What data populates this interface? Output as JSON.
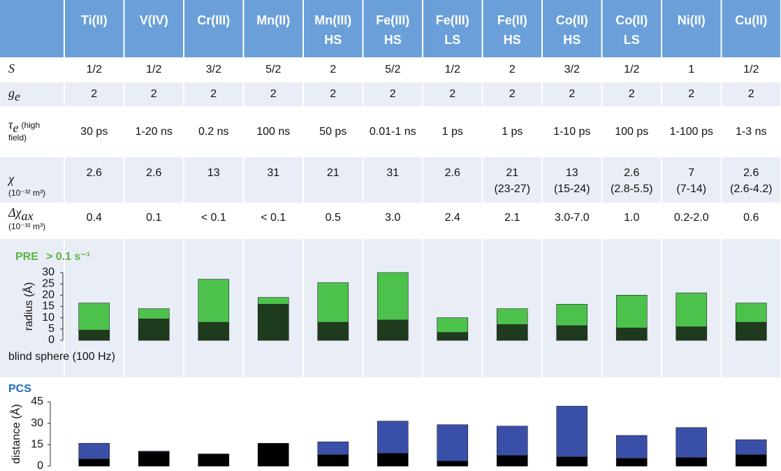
{
  "table": {
    "columns": [
      {
        "ion": "Ti(II)"
      },
      {
        "ion": "V(IV)"
      },
      {
        "ion": "Cr(III)"
      },
      {
        "ion": "Mn(II)"
      },
      {
        "ion": "Mn(III)",
        "state": "HS"
      },
      {
        "ion": "Fe(III)",
        "state": "HS"
      },
      {
        "ion": "Fe(III)",
        "state": "LS"
      },
      {
        "ion": "Fe(II)",
        "state": "HS"
      },
      {
        "ion": "Co(II)",
        "state": "HS"
      },
      {
        "ion": "Co(II)",
        "state": "LS"
      },
      {
        "ion": "Ni(II)"
      },
      {
        "ion": "Cu(II)"
      }
    ],
    "rows": [
      {
        "label": {
          "symbol": "S"
        },
        "cells": [
          "1/2",
          "1/2",
          "3/2",
          "5/2",
          "2",
          "5/2",
          "1/2",
          "2",
          "3/2",
          "1/2",
          "1",
          "1/2"
        ]
      },
      {
        "label": {
          "symbol": "g",
          "sub": "e"
        },
        "cells": [
          "2",
          "2",
          "2",
          "2",
          "2",
          "2",
          "2",
          "2",
          "2",
          "2",
          "2",
          "2"
        ]
      },
      {
        "label": {
          "symbol": "τ",
          "sub": "e",
          "note": [
            "(high",
            "field)"
          ]
        },
        "cells": [
          "30 ps",
          "1-20 ns",
          "0.2 ns",
          "100 ns",
          "50 ps",
          "0.01-1 ns",
          "1 ps",
          "1 ps",
          "1-10 ps",
          "100 ps",
          "1-100 ps",
          "1-3 ns"
        ]
      },
      {
        "label": {
          "symbol": "χ",
          "unit": "(10⁻³² m³)"
        },
        "cells": [
          {
            "value": "2.6"
          },
          {
            "value": "2.6"
          },
          {
            "value": "13"
          },
          {
            "value": "31"
          },
          {
            "value": "21"
          },
          {
            "value": "31"
          },
          {
            "value": "2.6"
          },
          {
            "value": "21",
            "range": "(23-27)"
          },
          {
            "value": "13",
            "range": "(15-24)"
          },
          {
            "value": "2.6",
            "range": "(2.8-5.5)"
          },
          {
            "value": "7",
            "range": "(7-14)"
          },
          {
            "value": "2.6",
            "range": "(2.6-4.2)"
          }
        ]
      },
      {
        "label": {
          "symbol": "Δχ",
          "sub": "ax",
          "unit": "(10⁻³² m³)"
        },
        "cells": [
          "0.4",
          "0.1",
          "< 0.1",
          "< 0.1",
          "0.5",
          "3.0",
          "2.4",
          "2.1",
          "3.0-7.0",
          "1.0",
          "0.2-2.0",
          "0.6"
        ]
      }
    ]
  },
  "chart_data": [
    {
      "type": "bar",
      "title": "PRE",
      "subtitle": "> 0.1 s⁻¹",
      "ylabel": "radius (Å)",
      "ylim": [
        0,
        30
      ],
      "yticks": [
        0,
        5,
        10,
        15,
        20,
        25,
        30
      ],
      "series": [
        {
          "color": "#4cc24c",
          "values": [
            16.5,
            14,
            27,
            19,
            25.5,
            30,
            10,
            14,
            16,
            20,
            21,
            16.5
          ]
        },
        {
          "name": "blind sphere (100 Hz)",
          "color": "#1e3b1e",
          "values": [
            4.5,
            9.5,
            8,
            16,
            8,
            9,
            3.5,
            7,
            6.5,
            5.5,
            6,
            8
          ]
        }
      ]
    },
    {
      "type": "bar",
      "title": "PCS",
      "ylabel": "distance (Å)",
      "ylim": [
        0,
        45
      ],
      "yticks": [
        0,
        15,
        30,
        45
      ],
      "series": [
        {
          "color": "#3a4fa8",
          "values": [
            16,
            10.5,
            8.5,
            16,
            17,
            31.5,
            29,
            28,
            42,
            21.5,
            27,
            18.5
          ]
        },
        {
          "color": "#000000",
          "values": [
            5,
            10,
            8.5,
            16,
            8,
            9,
            3.5,
            7.5,
            6.5,
            5.5,
            6,
            8
          ]
        }
      ]
    }
  ]
}
